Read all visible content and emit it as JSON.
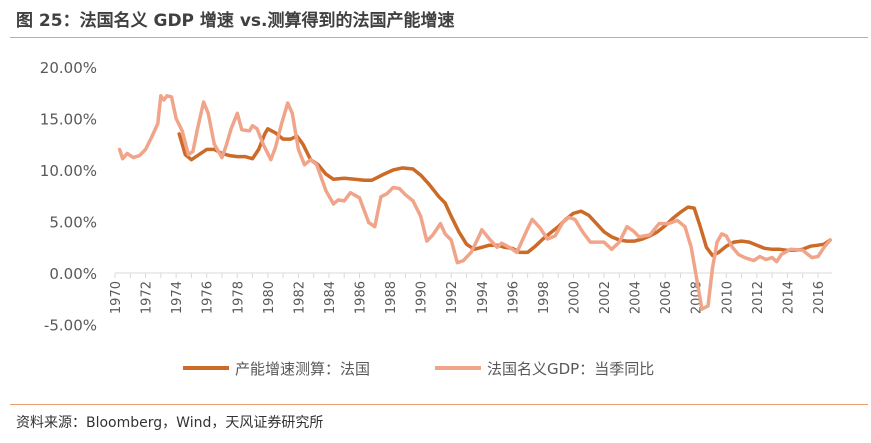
{
  "title": "图 25：法国名义 GDP 增速 vs.测算得到的法国产能增速",
  "source": "资料来源：Bloomberg，Wind，天风证券研究所",
  "chart_data": {
    "type": "line",
    "title": "",
    "xlabel": "",
    "ylabel": "",
    "xlim": [
      1970,
      2016.8
    ],
    "ylim": [
      -5,
      20
    ],
    "y_ticks": [
      "-5.00%",
      "0.00%",
      "5.00%",
      "10.00%",
      "15.00%",
      "20.00%"
    ],
    "y_tick_values": [
      -5,
      0,
      5,
      10,
      15,
      20
    ],
    "x_ticks": [
      "1970",
      "1972",
      "1974",
      "1976",
      "1978",
      "1980",
      "1982",
      "1984",
      "1986",
      "1988",
      "1990",
      "1992",
      "1994",
      "1996",
      "1998",
      "2000",
      "2002",
      "2004",
      "2006",
      "2008",
      "2010",
      "2012",
      "2014",
      "2016"
    ],
    "grid": false,
    "legend_position": "bottom",
    "series": [
      {
        "name": "产能增速测算：法国",
        "color": "#cc6a28",
        "points": [
          [
            1974.2,
            13.5
          ],
          [
            1974.6,
            11.5
          ],
          [
            1975,
            11.0
          ],
          [
            1975.5,
            11.5
          ],
          [
            1976,
            12.0
          ],
          [
            1976.5,
            12.0
          ],
          [
            1977,
            11.6
          ],
          [
            1977.5,
            11.4
          ],
          [
            1978,
            11.3
          ],
          [
            1978.5,
            11.3
          ],
          [
            1979,
            11.1
          ],
          [
            1979.4,
            12.0
          ],
          [
            1979.8,
            13.5
          ],
          [
            1980,
            14.0
          ],
          [
            1980.5,
            13.6
          ],
          [
            1981,
            13.0
          ],
          [
            1981.5,
            13.0
          ],
          [
            1981.9,
            13.3
          ],
          [
            1982.3,
            12.5
          ],
          [
            1982.8,
            11.0
          ],
          [
            1983.3,
            10.5
          ],
          [
            1983.8,
            9.6
          ],
          [
            1984.3,
            9.1
          ],
          [
            1985,
            9.2
          ],
          [
            1985.7,
            9.1
          ],
          [
            1986.3,
            9.0
          ],
          [
            1986.8,
            9.0
          ],
          [
            1987.2,
            9.3
          ],
          [
            1987.6,
            9.6
          ],
          [
            1988.2,
            10.0
          ],
          [
            1988.8,
            10.2
          ],
          [
            1989.5,
            10.1
          ],
          [
            1990,
            9.5
          ],
          [
            1990.5,
            8.7
          ],
          [
            1991.2,
            7.4
          ],
          [
            1991.6,
            6.8
          ],
          [
            1992,
            5.5
          ],
          [
            1992.5,
            4.0
          ],
          [
            1993,
            2.8
          ],
          [
            1993.5,
            2.3
          ],
          [
            1994,
            2.5
          ],
          [
            1994.5,
            2.7
          ],
          [
            1995,
            2.7
          ],
          [
            1995.5,
            2.5
          ],
          [
            1996,
            2.4
          ],
          [
            1996.5,
            2.0
          ],
          [
            1997,
            2.0
          ],
          [
            1997.5,
            2.6
          ],
          [
            1998,
            3.3
          ],
          [
            1998.5,
            3.9
          ],
          [
            1999,
            4.5
          ],
          [
            1999.5,
            5.2
          ],
          [
            2000,
            5.8
          ],
          [
            2000.5,
            6.0
          ],
          [
            2001,
            5.6
          ],
          [
            2001.5,
            4.8
          ],
          [
            2002,
            4.0
          ],
          [
            2002.5,
            3.5
          ],
          [
            2003,
            3.2
          ],
          [
            2003.5,
            3.1
          ],
          [
            2004,
            3.1
          ],
          [
            2004.5,
            3.3
          ],
          [
            2005,
            3.6
          ],
          [
            2005.5,
            4.0
          ],
          [
            2006,
            4.6
          ],
          [
            2006.5,
            5.3
          ],
          [
            2007,
            5.9
          ],
          [
            2007.5,
            6.4
          ],
          [
            2007.9,
            6.3
          ],
          [
            2008.3,
            4.5
          ],
          [
            2008.7,
            2.5
          ],
          [
            2009.1,
            1.7
          ],
          [
            2009.5,
            2.0
          ],
          [
            2010,
            2.6
          ],
          [
            2010.5,
            3.0
          ],
          [
            2011,
            3.1
          ],
          [
            2011.5,
            3.0
          ],
          [
            2012,
            2.7
          ],
          [
            2012.5,
            2.4
          ],
          [
            2013,
            2.3
          ],
          [
            2013.5,
            2.3
          ],
          [
            2014,
            2.2
          ],
          [
            2014.5,
            2.2
          ],
          [
            2015,
            2.3
          ],
          [
            2015.5,
            2.6
          ],
          [
            2016,
            2.7
          ],
          [
            2016.4,
            2.8
          ],
          [
            2016.8,
            3.2
          ]
        ]
      },
      {
        "name": "法国名义GDP：当季同比",
        "color": "#f0a58a",
        "points": [
          [
            1970.3,
            12.0
          ],
          [
            1970.5,
            11.1
          ],
          [
            1970.8,
            11.6
          ],
          [
            1971.2,
            11.2
          ],
          [
            1971.6,
            11.4
          ],
          [
            1972,
            12.0
          ],
          [
            1972.4,
            13.2
          ],
          [
            1972.8,
            14.5
          ],
          [
            1973,
            17.2
          ],
          [
            1973.2,
            16.8
          ],
          [
            1973.4,
            17.2
          ],
          [
            1973.7,
            17.1
          ],
          [
            1974,
            15.0
          ],
          [
            1974.4,
            13.8
          ],
          [
            1974.8,
            11.5
          ],
          [
            1975.1,
            11.8
          ],
          [
            1975.4,
            14.0
          ],
          [
            1975.8,
            16.6
          ],
          [
            1976.1,
            15.5
          ],
          [
            1976.5,
            12.5
          ],
          [
            1977,
            11.2
          ],
          [
            1977.3,
            12.5
          ],
          [
            1977.6,
            14.0
          ],
          [
            1978,
            15.5
          ],
          [
            1978.3,
            13.9
          ],
          [
            1978.8,
            13.8
          ],
          [
            1979,
            14.3
          ],
          [
            1979.3,
            14.0
          ],
          [
            1979.7,
            12.5
          ],
          [
            1980.2,
            11.0
          ],
          [
            1980.5,
            12.2
          ],
          [
            1980.9,
            14.5
          ],
          [
            1981.3,
            16.5
          ],
          [
            1981.6,
            15.5
          ],
          [
            1982,
            12.0
          ],
          [
            1982.4,
            10.5
          ],
          [
            1982.8,
            11.0
          ],
          [
            1983.2,
            10.5
          ],
          [
            1983.8,
            8.0
          ],
          [
            1984.3,
            6.7
          ],
          [
            1984.6,
            7.1
          ],
          [
            1985,
            7.0
          ],
          [
            1985.4,
            7.8
          ],
          [
            1986,
            7.3
          ],
          [
            1986.6,
            4.9
          ],
          [
            1987,
            4.5
          ],
          [
            1987.4,
            7.4
          ],
          [
            1987.8,
            7.7
          ],
          [
            1988.2,
            8.3
          ],
          [
            1988.6,
            8.2
          ],
          [
            1989,
            7.6
          ],
          [
            1989.5,
            7.0
          ],
          [
            1990,
            5.5
          ],
          [
            1990.4,
            3.1
          ],
          [
            1990.8,
            3.7
          ],
          [
            1991.3,
            4.8
          ],
          [
            1991.6,
            3.8
          ],
          [
            1992,
            3.2
          ],
          [
            1992.4,
            1.0
          ],
          [
            1992.8,
            1.2
          ],
          [
            1993.3,
            2.0
          ],
          [
            1993.8,
            3.5
          ],
          [
            1994,
            4.2
          ],
          [
            1994.5,
            3.3
          ],
          [
            1995,
            2.5
          ],
          [
            1995.3,
            2.9
          ],
          [
            1995.8,
            2.5
          ],
          [
            1996.3,
            2.0
          ],
          [
            1996.6,
            3.0
          ],
          [
            1997,
            4.3
          ],
          [
            1997.3,
            5.2
          ],
          [
            1997.8,
            4.4
          ],
          [
            1998.3,
            3.3
          ],
          [
            1998.8,
            3.6
          ],
          [
            1999.3,
            4.9
          ],
          [
            1999.7,
            5.4
          ],
          [
            2000.1,
            5.2
          ],
          [
            2000.6,
            4.0
          ],
          [
            2001.1,
            3.0
          ],
          [
            2001.6,
            3.0
          ],
          [
            2002,
            3.0
          ],
          [
            2002.5,
            2.3
          ],
          [
            2003,
            3.0
          ],
          [
            2003.5,
            4.5
          ],
          [
            2003.9,
            4.1
          ],
          [
            2004.3,
            3.5
          ],
          [
            2005,
            3.7
          ],
          [
            2005.6,
            4.8
          ],
          [
            2006.2,
            4.8
          ],
          [
            2006.8,
            5.1
          ],
          [
            2007.3,
            4.5
          ],
          [
            2007.7,
            2.5
          ],
          [
            2008,
            0.0
          ],
          [
            2008.4,
            -3.5
          ],
          [
            2008.8,
            -3.2
          ],
          [
            2009.1,
            0.5
          ],
          [
            2009.4,
            3.0
          ],
          [
            2009.7,
            3.8
          ],
          [
            2010,
            3.6
          ],
          [
            2010.4,
            2.5
          ],
          [
            2010.8,
            1.8
          ],
          [
            2011.2,
            1.5
          ],
          [
            2011.8,
            1.2
          ],
          [
            2012.2,
            1.6
          ],
          [
            2012.6,
            1.3
          ],
          [
            2013,
            1.5
          ],
          [
            2013.3,
            1.1
          ],
          [
            2013.6,
            1.8
          ],
          [
            2014.2,
            2.3
          ],
          [
            2015,
            2.2
          ],
          [
            2015.6,
            1.5
          ],
          [
            2016,
            1.6
          ],
          [
            2016.4,
            2.5
          ],
          [
            2016.8,
            3.2
          ]
        ]
      }
    ]
  }
}
